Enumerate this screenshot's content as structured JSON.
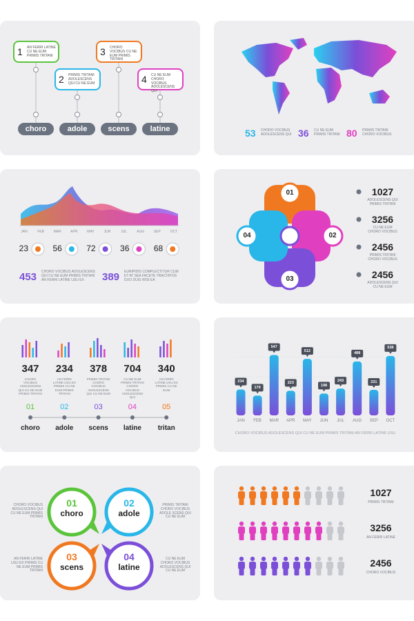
{
  "timeline": {
    "steps": [
      {
        "number": 1,
        "text": "AN FERRI LATINE CU NE EUM PRIMIS TRITANI",
        "label": "choro",
        "color": "#5cc43c"
      },
      {
        "number": 2,
        "text": "PRIMIS TRITANI ADOLESCENS QUI CU NE EUM",
        "label": "adole",
        "color": "#29b6e8"
      },
      {
        "number": 3,
        "text": "CHORO VOCIBUS CU NE EUM PRIMIS TRITANI",
        "label": "scens",
        "color": "#f07820"
      },
      {
        "number": 4,
        "text": "CU NE EUM CHORO VOCIBUS ADOLESCENS QUI",
        "label": "latine",
        "color": "#e040c0"
      }
    ]
  },
  "world_map": {
    "stats": [
      {
        "value": 53,
        "text": "CHORO VOCIBUS ADOLESCENS QUI",
        "color": "#29b6e8"
      },
      {
        "value": 36,
        "text": "CU NE EUM PRIMIS TRITANI",
        "color": "#7b4fd8"
      },
      {
        "value": 80,
        "text": "PRIMIS TRITANI CHORO VOCIBUS",
        "color": "#e040c0"
      }
    ]
  },
  "area_chart": {
    "months": [
      "JAN",
      "FEB",
      "MAR",
      "APR",
      "MAY",
      "JUN",
      "JUL",
      "AUG",
      "SEP",
      "OCT"
    ],
    "markers": [
      {
        "value": 23,
        "color": "#f07820"
      },
      {
        "value": 56,
        "color": "#29b6e8"
      },
      {
        "value": 72,
        "color": "#7b4fd8"
      },
      {
        "value": 36,
        "color": "#e040c0"
      },
      {
        "value": 68,
        "color": "#f07820"
      }
    ],
    "stats": [
      {
        "value": 453,
        "text": "CHORO VOCIBUS ADOLESCENS QUI CU NE EUM PRIMIS TRITANI AN FERRI LATINE USU EX"
      },
      {
        "value": 389,
        "text": "EURIPIDIS COMPLECTITUR CUM ET AT SEA FACETE TRACTATOS DUO DUIS WISI EA"
      }
    ]
  },
  "cycle": {
    "segments": [
      {
        "number": "01",
        "color": "#f07820"
      },
      {
        "number": "02",
        "color": "#e040c0"
      },
      {
        "number": "03",
        "color": "#7b4fd8"
      },
      {
        "number": "04",
        "color": "#29b6e8"
      }
    ],
    "stats": [
      {
        "value": 1027,
        "text": "ADOLESCENS QUI PRIMIS TRITANI"
      },
      {
        "value": 3256,
        "text": "CU NE EUM CHORO VOCIBUS"
      },
      {
        "value": 2456,
        "text": "PRIMIS TRITANI CHORO VOCIBUS"
      },
      {
        "value": 2456,
        "text": "ADOLESCENS QUI CU NE EUM"
      }
    ]
  },
  "equalizer": {
    "items": [
      {
        "value": 347,
        "text": "CHORO VOCIBUS ADOLESCENS QUI CU NE EUM PRIMIS TRITANI"
      },
      {
        "value": 234,
        "text": "AN FERRI LATINE USU EX PRIMIS CU NE EUM PRIMIS TRITANI"
      },
      {
        "value": 378,
        "text": "PRIMIS TRITANI CHORO VOCIBUS ADOLESCENS QUI CU NE EUM"
      },
      {
        "value": 704,
        "text": "CU NE EUM PRIMIS TRITANI CHORO VOCIBUS ADOLESCENS QUI"
      },
      {
        "value": 340,
        "text": "AN FERRI LATINE USU EX PRIMIS CU NE EUM"
      }
    ],
    "steps": [
      {
        "number": "01",
        "label": "choro",
        "color": "#5cc43c"
      },
      {
        "number": "02",
        "label": "adole",
        "color": "#29b6e8"
      },
      {
        "number": "03",
        "label": "scens",
        "color": "#7b4fd8"
      },
      {
        "number": "04",
        "label": "latine",
        "color": "#e040c0"
      },
      {
        "number": "05",
        "label": "tritan",
        "color": "#f07820"
      }
    ]
  },
  "bar_chart": {
    "type": "bar",
    "categories": [
      "JAN",
      "FEB",
      "MAR",
      "APR",
      "MAY",
      "JUN",
      "JUL",
      "AUG",
      "SEP",
      "OCT"
    ],
    "values": [
      234,
      179,
      547,
      223,
      512,
      198,
      243,
      488,
      231,
      538
    ],
    "caption": "CHORO VOCIBUS ADOLESCENS QUI CU NE EUM PRIMIS TRITANI AN FERRI LATINE USU"
  },
  "bubbles": [
    {
      "number": "01",
      "label": "choro",
      "text": "CHORO VOCIBUS ADOLESCENS QUI CU NE EUM PRIMIS TRITANI",
      "color": "#5cc43c"
    },
    {
      "number": "02",
      "label": "adole",
      "text": "PRIMIS TRITANI CHORO VOCIBUS ADOLE SCENS QUI CU NE EUM",
      "color": "#29b6e8"
    },
    {
      "number": "03",
      "label": "scens",
      "text": "AN FERRI LATINE USU EX PRIMIS CU NE EUM PRIMIS TRITANI",
      "color": "#f07820"
    },
    {
      "number": "04",
      "label": "latine",
      "text": "CU NE EUM CHORO VOCIBUS ADOLESCENS QUI CU NE EUM",
      "color": "#7b4fd8"
    }
  ],
  "people": [
    {
      "value": 1027,
      "text": "PRIMIS TRITANI",
      "color": "#f07820",
      "filled": 6,
      "total": 10
    },
    {
      "value": 3256,
      "text": "AN FERRI LATINE",
      "color": "#e040c0",
      "filled": 8,
      "total": 10
    },
    {
      "value": 2456,
      "text": "CHORO VOCIBUS",
      "color": "#7b4fd8",
      "filled": 7,
      "total": 10
    }
  ]
}
